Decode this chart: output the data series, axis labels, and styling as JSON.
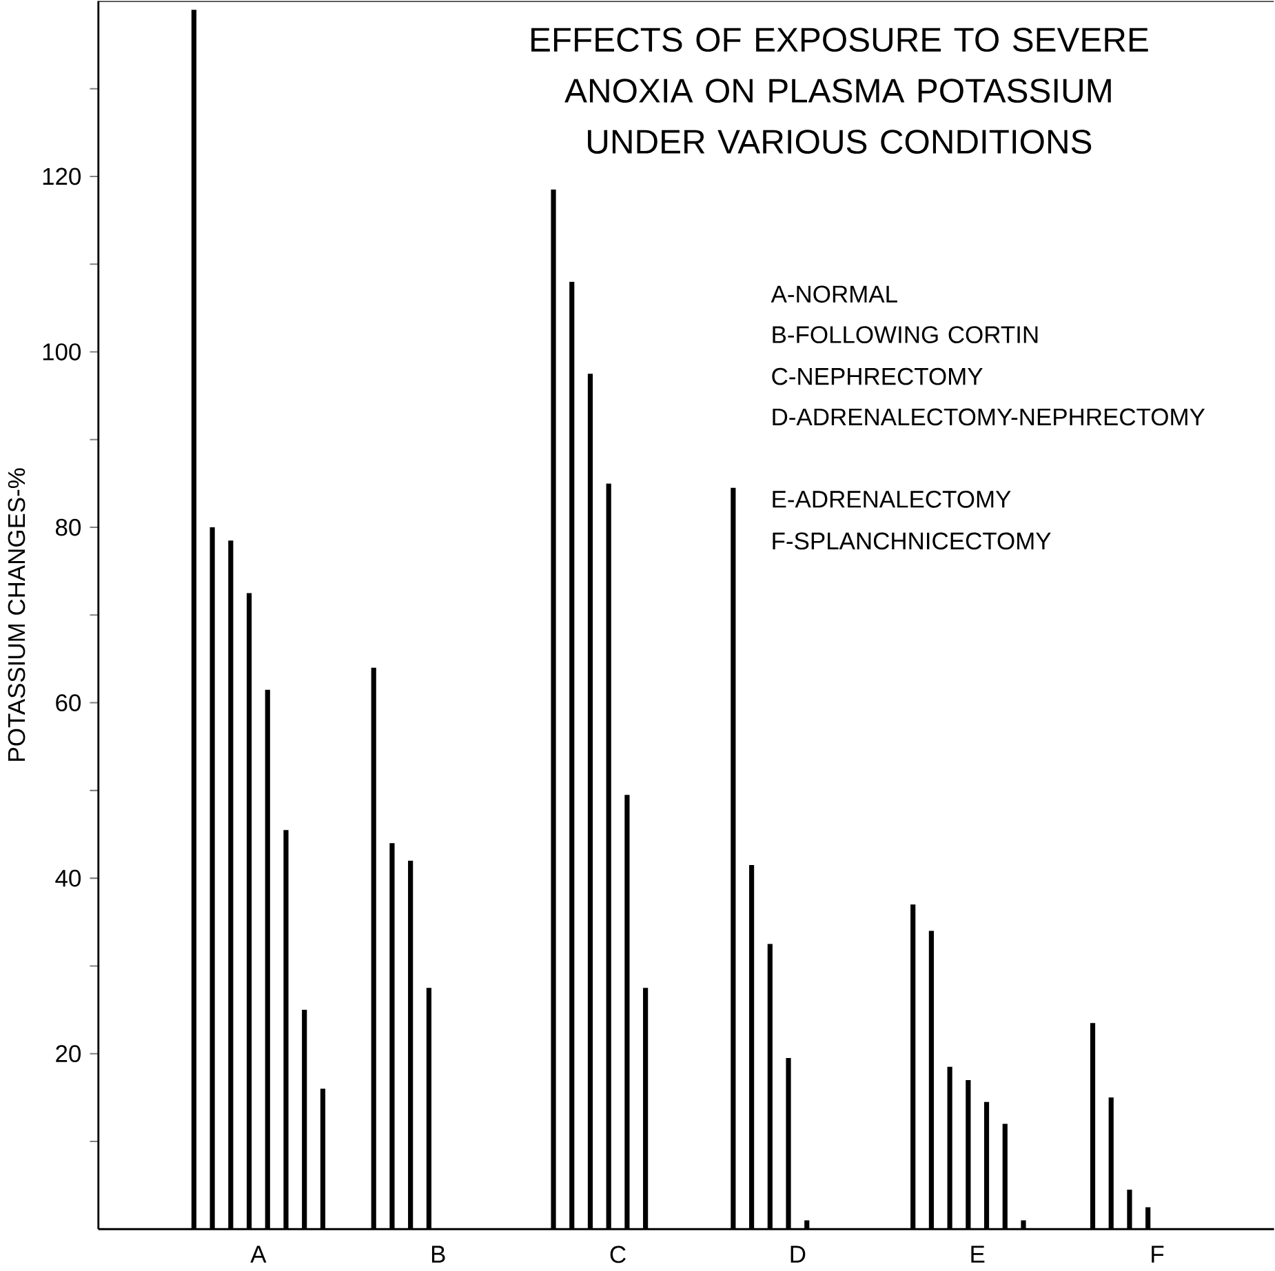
{
  "chart_data": {
    "type": "bar",
    "title": "EFFECTS OF EXPOSURE TO SEVERE ANOXIA ON PLASMA POTASSIUM UNDER VARIOUS CONDITIONS",
    "ylabel": "POTASSIUM CHANGES-%",
    "categories": [
      "A",
      "B",
      "C",
      "D",
      "E",
      "F"
    ],
    "series": [
      {
        "color": "#000000",
        "values": [
          139,
          64,
          118.5,
          84.5,
          37,
          23.5
        ]
      },
      {
        "color": "#000000",
        "values": [
          80,
          44,
          108,
          41.5,
          34,
          15
        ]
      },
      {
        "color": "#000000",
        "values": [
          78.5,
          42,
          97.5,
          32.5,
          18.5,
          4.5
        ]
      },
      {
        "color": "#000000",
        "values": [
          72.5,
          27.5,
          85,
          19.5,
          17,
          2.5
        ]
      },
      {
        "color": "#000000",
        "values": [
          61.5,
          null,
          49.5,
          1,
          14.5,
          null
        ]
      },
      {
        "color": "#000000",
        "values": [
          45.5,
          null,
          27.5,
          null,
          12,
          null
        ]
      },
      {
        "color": "#000000",
        "values": [
          25,
          null,
          null,
          null,
          1,
          null
        ]
      },
      {
        "color": "#000000",
        "values": [
          16,
          null,
          null,
          null,
          null,
          null
        ]
      }
    ],
    "ylim": [
      0,
      140
    ],
    "yticks": [
      {
        "value": 10,
        "label": null
      },
      20,
      {
        "value": 30,
        "label": null
      },
      40,
      {
        "value": 50,
        "label": null
      },
      60,
      {
        "value": 70,
        "label": null
      },
      80,
      {
        "value": 90,
        "label": null
      },
      100,
      {
        "value": 110,
        "label": null
      },
      120,
      {
        "value": 130,
        "label": null
      }
    ],
    "annotations": [
      "A-NORMAL",
      "B-FOLLOWING CORTIN",
      "C-NEPHRECTOMY",
      "D-ADRENALECTOMY-NEPHRECTOMY",
      "E-ADRENALECTOMY",
      "F-SPLANCHNICECTOMY"
    ]
  }
}
